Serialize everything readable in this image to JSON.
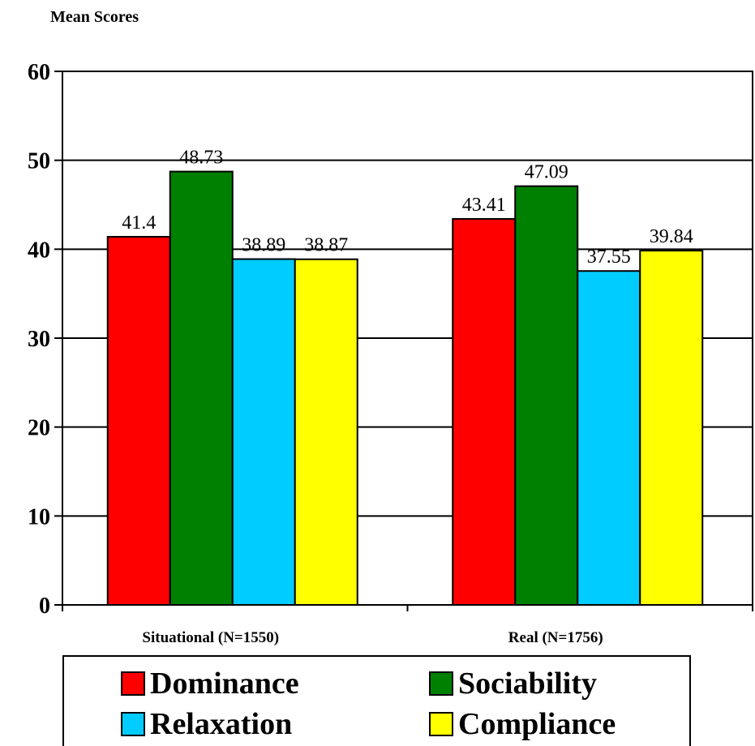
{
  "chart_data": {
    "type": "bar",
    "title": "",
    "ylabel": "Mean Scores",
    "xlabel": "",
    "ylim": [
      0,
      60
    ],
    "yticks": [
      0,
      10,
      20,
      30,
      40,
      50,
      60
    ],
    "grid": true,
    "legend_position": "bottom",
    "categories": [
      "Situational (N=1550)",
      "Real (N=1756)"
    ],
    "series": [
      {
        "name": "Dominance",
        "color": "#ff0000",
        "values": [
          41.4,
          43.41
        ],
        "labels": [
          "41.4",
          "43.41"
        ]
      },
      {
        "name": "Sociability",
        "color": "#008000",
        "values": [
          48.73,
          47.09
        ],
        "labels": [
          "48.73",
          "47.09"
        ]
      },
      {
        "name": "Relaxation",
        "color": "#00ccff",
        "values": [
          38.89,
          37.55
        ],
        "labels": [
          "38.89",
          "37.55"
        ]
      },
      {
        "name": "Compliance",
        "color": "#ffff00",
        "values": [
          38.87,
          39.84
        ],
        "labels": [
          "38.87",
          "39.84"
        ]
      }
    ]
  }
}
